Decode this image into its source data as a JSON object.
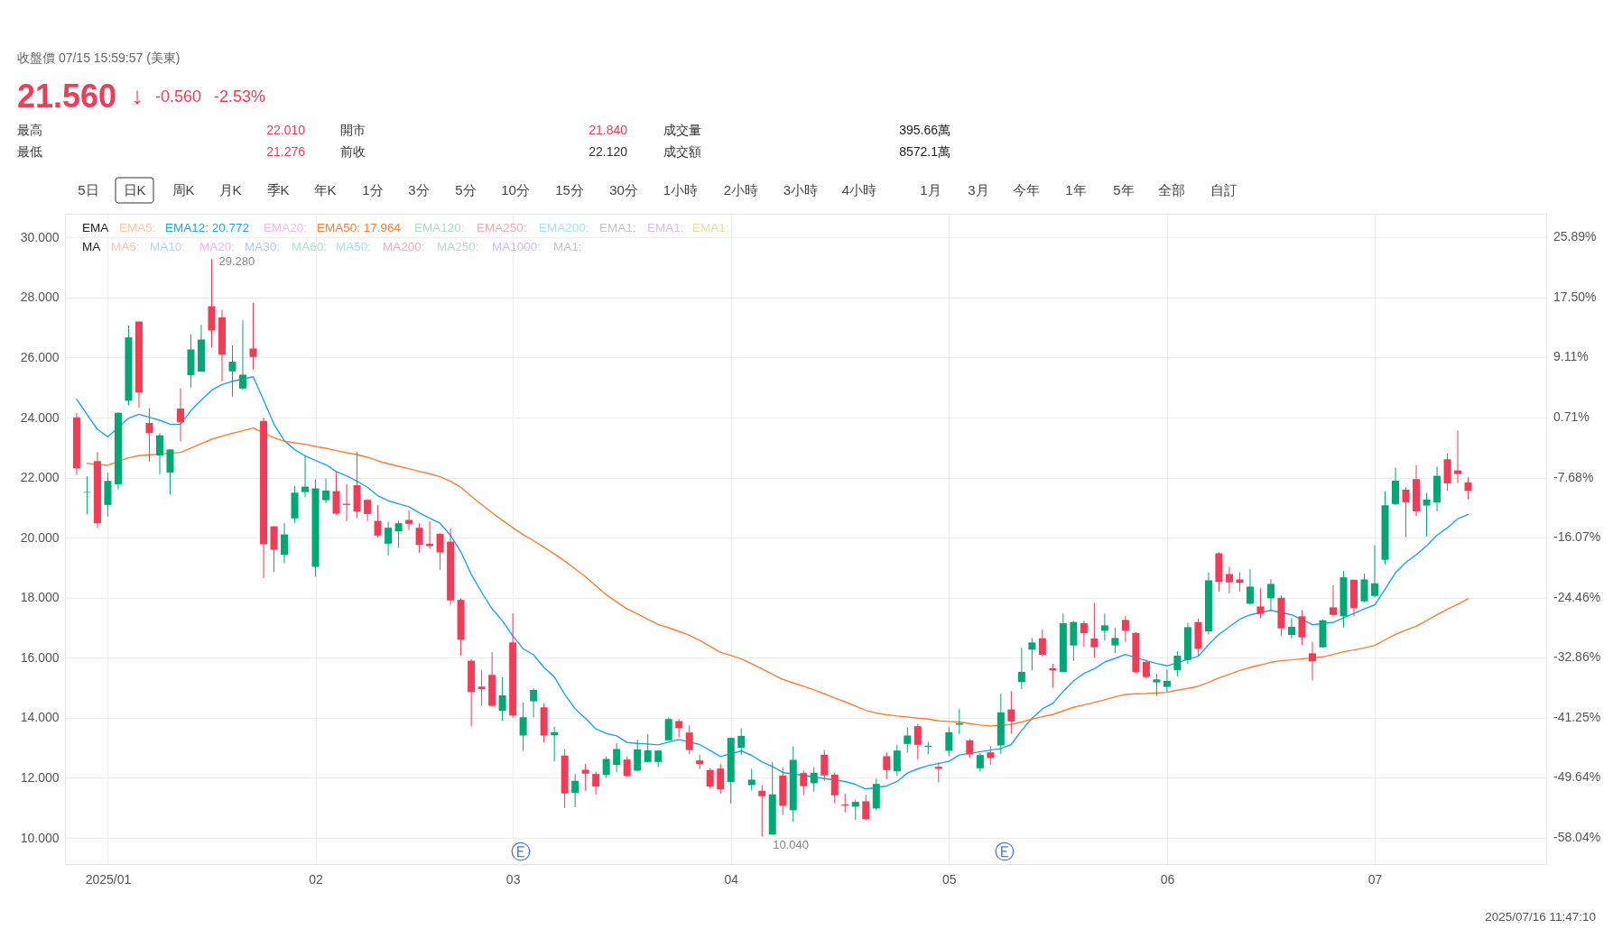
{
  "chart_data": {
    "type": "candlestick",
    "subtitle": "收盤價 07/15 15:59:57 (美東)",
    "categories": [
      null,
      null,
      null,
      "2025/01",
      null,
      null,
      null,
      null,
      null,
      null,
      null,
      null,
      null,
      null,
      null,
      null,
      null,
      null,
      null,
      null,
      null,
      null,
      null,
      "02",
      null,
      null,
      null,
      null,
      null,
      null,
      null,
      null,
      null,
      null,
      null,
      null,
      null,
      null,
      null,
      null,
      null,
      null,
      "03",
      null,
      null,
      null,
      null,
      null,
      null,
      null,
      null,
      null,
      null,
      null,
      null,
      null,
      null,
      null,
      null,
      null,
      null,
      null,
      null,
      "04",
      null,
      null,
      null,
      null,
      null,
      null,
      null,
      null,
      null,
      null,
      null,
      null,
      null,
      null,
      null,
      null,
      null,
      null,
      null,
      null,
      "05",
      null,
      null,
      null,
      null,
      null,
      null,
      null,
      null,
      null,
      null,
      null,
      null,
      null,
      null,
      null,
      null,
      null,
      null,
      null,
      null,
      "06",
      null,
      null,
      null,
      null,
      null,
      null,
      null,
      null,
      null,
      null,
      null,
      null,
      null,
      null,
      null,
      null,
      null,
      null,
      null,
      "07",
      null,
      null,
      null,
      null,
      null,
      null,
      null,
      null,
      null
    ],
    "ohlc": [
      [
        24.01,
        24.16,
        22.1,
        22.31
      ],
      [
        21.5,
        22.05,
        20.78,
        21.52
      ],
      [
        22.55,
        22.85,
        20.33,
        20.48
      ],
      [
        21.09,
        22.16,
        20.71,
        21.89
      ],
      [
        21.78,
        24.18,
        21.61,
        24.16
      ],
      [
        24.56,
        27.07,
        24.41,
        26.67
      ],
      [
        27.2,
        27.2,
        24.33,
        24.84
      ],
      [
        23.82,
        24.31,
        22.53,
        23.48
      ],
      [
        22.74,
        23.48,
        22.11,
        23.41
      ],
      [
        22.17,
        22.94,
        21.43,
        22.94
      ],
      [
        24.3,
        24.98,
        23.21,
        23.84
      ],
      [
        25.41,
        26.77,
        25.0,
        26.27
      ],
      [
        25.53,
        27.09,
        25.53,
        26.6
      ],
      [
        27.71,
        29.28,
        26.33,
        26.9
      ],
      [
        27.34,
        27.59,
        25.21,
        26.1
      ],
      [
        25.54,
        26.4,
        24.7,
        25.86
      ],
      [
        24.97,
        27.25,
        24.92,
        25.43
      ],
      [
        26.3,
        27.83,
        25.6,
        26.02
      ],
      [
        23.89,
        24.0,
        18.65,
        19.78
      ],
      [
        20.38,
        20.38,
        18.85,
        19.6
      ],
      [
        19.43,
        20.48,
        19.15,
        20.11
      ],
      [
        20.64,
        21.72,
        20.5,
        21.5
      ],
      [
        21.52,
        22.73,
        21.35,
        21.7
      ],
      [
        19.03,
        21.94,
        18.7,
        21.64
      ],
      [
        21.25,
        21.97,
        21.15,
        21.57
      ],
      [
        21.55,
        22.2,
        20.77,
        20.8
      ],
      [
        21.13,
        21.78,
        20.55,
        21.09
      ],
      [
        21.75,
        22.85,
        20.65,
        20.87
      ],
      [
        21.26,
        21.28,
        20.55,
        20.79
      ],
      [
        20.56,
        21.08,
        20.0,
        20.07
      ],
      [
        19.8,
        20.53,
        19.41,
        20.33
      ],
      [
        20.21,
        20.57,
        19.66,
        20.48
      ],
      [
        20.59,
        20.9,
        20.25,
        20.46
      ],
      [
        20.33,
        20.48,
        19.5,
        19.76
      ],
      [
        19.8,
        20.55,
        19.63,
        19.72
      ],
      [
        20.13,
        20.15,
        18.92,
        19.51
      ],
      [
        19.87,
        20.31,
        17.76,
        17.91
      ],
      [
        17.93,
        17.98,
        16.06,
        16.6
      ],
      [
        15.9,
        15.95,
        13.71,
        14.86
      ],
      [
        15.04,
        15.58,
        14.4,
        14.95
      ],
      [
        15.43,
        16.19,
        14.38,
        14.4
      ],
      [
        14.23,
        15.35,
        13.9,
        14.75
      ],
      [
        16.51,
        17.48,
        14.0,
        14.08
      ],
      [
        13.41,
        14.51,
        12.9,
        14.02
      ],
      [
        14.55,
        14.98,
        14.01,
        14.93
      ],
      [
        14.35,
        14.48,
        13.18,
        13.41
      ],
      [
        13.42,
        13.7,
        12.55,
        13.52
      ],
      [
        12.74,
        12.95,
        10.99,
        11.48
      ],
      [
        11.5,
        12.13,
        11.02,
        11.9
      ],
      [
        12.27,
        12.47,
        11.57,
        12.14
      ],
      [
        12.13,
        12.21,
        11.44,
        11.71
      ],
      [
        12.1,
        12.71,
        12.0,
        12.63
      ],
      [
        12.43,
        13.16,
        12.18,
        12.96
      ],
      [
        12.61,
        12.7,
        12.04,
        12.06
      ],
      [
        12.24,
        13.27,
        12.22,
        12.95
      ],
      [
        12.53,
        13.46,
        12.51,
        12.92
      ],
      [
        12.53,
        12.91,
        12.35,
        12.91
      ],
      [
        13.25,
        14.01,
        13.25,
        13.96
      ],
      [
        13.89,
        13.96,
        13.36,
        13.66
      ],
      [
        13.51,
        13.75,
        12.78,
        12.93
      ],
      [
        12.58,
        12.77,
        12.3,
        12.46
      ],
      [
        12.26,
        12.33,
        11.64,
        11.71
      ],
      [
        12.31,
        12.46,
        11.47,
        11.62
      ],
      [
        11.86,
        13.35,
        11.14,
        13.33
      ],
      [
        13.0,
        13.65,
        12.76,
        13.4
      ],
      [
        11.76,
        12.3,
        11.58,
        11.94
      ],
      [
        11.57,
        11.75,
        10.04,
        11.39
      ],
      [
        10.11,
        12.53,
        10.11,
        11.45
      ],
      [
        12.08,
        12.35,
        10.76,
        11.07
      ],
      [
        10.92,
        13.05,
        10.54,
        12.6
      ],
      [
        12.16,
        12.24,
        11.42,
        11.72
      ],
      [
        11.82,
        12.36,
        11.54,
        12.17
      ],
      [
        12.77,
        12.93,
        11.91,
        12.08
      ],
      [
        12.11,
        12.17,
        11.15,
        11.42
      ],
      [
        11.11,
        11.47,
        10.85,
        11.08
      ],
      [
        11.04,
        11.26,
        10.6,
        11.2
      ],
      [
        11.22,
        11.44,
        10.6,
        10.62
      ],
      [
        10.98,
        11.97,
        10.92,
        11.8
      ],
      [
        12.72,
        12.85,
        11.96,
        12.26
      ],
      [
        12.22,
        13.1,
        12.06,
        12.91
      ],
      [
        13.13,
        13.68,
        12.84,
        13.41
      ],
      [
        13.72,
        13.8,
        12.6,
        13.1
      ],
      [
        13.03,
        13.2,
        12.78,
        13.07
      ],
      [
        12.37,
        12.51,
        11.85,
        12.3
      ],
      [
        12.9,
        13.71,
        12.72,
        13.52
      ],
      [
        13.77,
        14.29,
        13.46,
        13.82
      ],
      [
        13.25,
        13.3,
        12.66,
        12.78
      ],
      [
        12.32,
        12.83,
        12.21,
        12.76
      ],
      [
        12.85,
        13.06,
        12.43,
        12.66
      ],
      [
        13.08,
        14.8,
        12.8,
        14.18
      ],
      [
        14.28,
        14.89,
        13.47,
        13.88
      ],
      [
        15.19,
        16.33,
        14.96,
        15.53
      ],
      [
        16.27,
        16.66,
        15.58,
        16.51
      ],
      [
        16.65,
        16.94,
        16.04,
        16.1
      ],
      [
        15.65,
        15.8,
        15.0,
        15.58
      ],
      [
        15.53,
        17.47,
        15.53,
        17.15
      ],
      [
        16.41,
        17.23,
        15.9,
        17.19
      ],
      [
        17.15,
        17.23,
        16.37,
        16.82
      ],
      [
        16.64,
        17.83,
        16.0,
        16.35
      ],
      [
        16.9,
        17.47,
        16.57,
        17.08
      ],
      [
        16.41,
        17.0,
        16.16,
        16.66
      ],
      [
        17.26,
        17.39,
        16.53,
        16.9
      ],
      [
        16.83,
        16.85,
        15.48,
        15.52
      ],
      [
        15.86,
        15.94,
        15.3,
        15.36
      ],
      [
        15.18,
        15.46,
        14.73,
        15.28
      ],
      [
        15.03,
        15.61,
        14.86,
        15.23
      ],
      [
        15.59,
        16.22,
        15.38,
        16.07
      ],
      [
        15.93,
        17.16,
        15.8,
        17.02
      ],
      [
        17.19,
        17.31,
        16.04,
        16.3
      ],
      [
        16.88,
        18.85,
        16.78,
        18.58
      ],
      [
        19.48,
        19.51,
        18.2,
        18.53
      ],
      [
        18.79,
        19.03,
        18.14,
        18.51
      ],
      [
        18.61,
        18.85,
        18.2,
        18.5
      ],
      [
        17.8,
        18.95,
        17.77,
        18.37
      ],
      [
        17.71,
        18.31,
        17.32,
        17.46
      ],
      [
        17.98,
        18.62,
        17.59,
        18.46
      ],
      [
        18.0,
        18.08,
        16.74,
        16.98
      ],
      [
        16.76,
        17.32,
        16.65,
        17.03
      ],
      [
        17.38,
        17.58,
        16.43,
        16.68
      ],
      [
        16.15,
        16.53,
        15.25,
        15.88
      ],
      [
        16.35,
        17.28,
        16.33,
        17.25
      ],
      [
        17.68,
        18.42,
        17.38,
        17.43
      ],
      [
        17.38,
        18.89,
        17.01,
        18.68
      ],
      [
        18.6,
        18.6,
        17.38,
        17.65
      ],
      [
        17.88,
        18.8,
        17.85,
        18.61
      ],
      [
        18.06,
        19.75,
        18.01,
        18.48
      ],
      [
        19.26,
        21.55,
        19.11,
        21.08
      ],
      [
        21.12,
        22.33,
        21.08,
        21.9
      ],
      [
        21.6,
        21.68,
        20.02,
        21.18
      ],
      [
        21.95,
        22.42,
        20.72,
        20.88
      ],
      [
        21.07,
        21.49,
        20.04,
        21.27
      ],
      [
        21.17,
        22.37,
        20.88,
        22.06
      ],
      [
        22.61,
        22.81,
        21.56,
        21.81
      ],
      [
        22.24,
        23.57,
        21.82,
        22.12
      ],
      [
        21.84,
        22.01,
        21.276,
        21.56
      ]
    ],
    "colors": [
      "#f23b56",
      "#00a874",
      "#f23b56",
      "#00a874",
      "#00a874",
      "#00a874",
      "#f23b56",
      "#f23b56",
      "#00a874",
      "#00a874",
      "#f23b56",
      "#00a874",
      "#00a874",
      "#f23b56",
      "#f23b56",
      "#00a874",
      "#00a874",
      "#f23b56",
      "#f23b56",
      "#f23b56",
      "#00a874",
      "#00a874",
      "#00a874",
      "#00a874",
      "#00a874",
      "#f23b56",
      "#f23b56",
      "#f23b56",
      "#f23b56",
      "#f23b56",
      "#00a874",
      "#00a874",
      "#f23b56",
      "#f23b56",
      "#f23b56",
      "#f23b56",
      "#f23b56",
      "#f23b56",
      "#f23b56",
      "#f23b56",
      "#f23b56",
      "#00a874",
      "#f23b56",
      "#00a874",
      "#00a874",
      "#f23b56",
      "#00a874",
      "#f23b56",
      "#00a874",
      "#f23b56",
      "#f23b56",
      "#00a874",
      "#00a874",
      "#f23b56",
      "#00a874",
      "#00a874",
      "#00a874",
      "#00a874",
      "#f23b56",
      "#f23b56",
      "#f23b56",
      "#f23b56",
      "#f23b56",
      "#00a874",
      "#00a874",
      "#00a874",
      "#f23b56",
      "#00a874",
      "#f23b56",
      "#00a874",
      "#f23b56",
      "#00a874",
      "#f23b56",
      "#f23b56",
      "#f23b56",
      "#00a874",
      "#f23b56",
      "#00a874",
      "#f23b56",
      "#00a874",
      "#00a874",
      "#f23b56",
      "#00a874",
      "#f23b56",
      "#00a874",
      "#00a874",
      "#f23b56",
      "#00a874",
      "#f23b56",
      "#00a874",
      "#f23b56",
      "#00a874",
      "#00a874",
      "#f23b56",
      "#f23b56",
      "#00a874",
      "#00a874",
      "#f23b56",
      "#f23b56",
      "#00a874",
      "#00a874",
      "#f23b56",
      "#f23b56",
      "#f23b56",
      "#00a874",
      "#00a874",
      "#00a874",
      "#00a874",
      "#f23b56",
      "#00a874",
      "#f23b56",
      "#f23b56",
      "#f23b56",
      "#00a874",
      "#f23b56",
      "#00a874",
      "#f23b56",
      "#00a874",
      "#f23b56",
      "#f23b56",
      "#00a874",
      "#f23b56",
      "#00a874",
      "#f23b56",
      "#00a874",
      "#00a874",
      "#00a874",
      "#00a874",
      "#f23b56",
      "#f23b56",
      "#00a874",
      "#00a874",
      "#f23b56",
      "#f23b56",
      "#f23b56"
    ],
    "series": [
      {
        "type": "line",
        "name": "EMA12: 20.772",
        "color": "#1ba6e8",
        "values": [
          24.61,
          24.1,
          23.61,
          23.36,
          null,
          23.98,
          24.11,
          24.01,
          23.91,
          23.78,
          23.78,
          24.23,
          24.58,
          24.91,
          25.1,
          25.21,
          null,
          25.36,
          24.58,
          23.78,
          23.23,
          22.93,
          22.73,
          22.57,
          22.43,
          22.2,
          22.06,
          21.88,
          21.68,
          21.4,
          21.23,
          21.13,
          21.03,
          20.83,
          20.65,
          20.48,
          20.08,
          19.53,
          18.78,
          18.18,
          17.63,
          17.23,
          16.73,
          16.3,
          16.1,
          15.68,
          15.36,
          14.78,
          14.3,
          13.98,
          13.63,
          13.48,
          13.4,
          13.18,
          13.15,
          13.13,
          13.1,
          null,
          13.28,
          null,
          13.11,
          12.91,
          12.71,
          null,
          12.9,
          12.75,
          12.53,
          12.38,
          12.18,
          null,
          null,
          null,
          null,
          null,
          11.88,
          11.78,
          11.63,
          null,
          11.73,
          11.88,
          12.16,
          12.3,
          12.41,
          null,
          12.55,
          12.76,
          null,
          null,
          null,
          12.98,
          13.11,
          13.58,
          13.98,
          14.3,
          14.48,
          14.88,
          15.23,
          15.48,
          15.63,
          15.86,
          15.98,
          16.11,
          null,
          15.9,
          15.81,
          15.73,
          null,
          null,
          16.05,
          16.43,
          16.78,
          17.03,
          17.28,
          17.43,
          null,
          17.58,
          null,
          17.43,
          null,
          17.1,
          null,
          17.18,
          17.33,
          17.48,
          17.63,
          17.76,
          18.28,
          18.83,
          19.18,
          19.43,
          19.73,
          20.08,
          20.33,
          20.63,
          20.772
        ]
      },
      {
        "type": "line",
        "name": "EMA50: 17.964",
        "color": "#ff7d33",
        "values": [
          null,
          22.48,
          null,
          22.41,
          null,
          22.66,
          22.73,
          22.76,
          null,
          null,
          22.84,
          22.98,
          23.13,
          23.28,
          23.38,
          23.48,
          23.56,
          23.65,
          null,
          23.33,
          23.21,
          23.16,
          23.11,
          23.04,
          22.98,
          22.9,
          22.83,
          22.77,
          22.68,
          22.56,
          22.46,
          22.38,
          22.3,
          22.21,
          22.13,
          22.03,
          21.88,
          21.68,
          21.38,
          21.1,
          20.83,
          20.58,
          20.33,
          20.1,
          19.9,
          19.68,
          19.46,
          19.22,
          18.96,
          18.7,
          18.4,
          18.1,
          17.86,
          17.63,
          17.46,
          17.28,
          17.11,
          17.0,
          16.88,
          16.75,
          16.58,
          16.38,
          16.18,
          16.08,
          15.96,
          15.8,
          15.63,
          15.45,
          15.28,
          15.16,
          15.05,
          14.93,
          14.8,
          14.66,
          14.53,
          14.39,
          14.25,
          14.16,
          14.1,
          14.06,
          14.03,
          13.99,
          13.96,
          13.9,
          13.88,
          13.86,
          13.81,
          13.76,
          13.73,
          null,
          13.78,
          13.86,
          13.96,
          14.04,
          14.11,
          14.23,
          14.35,
          14.43,
          14.51,
          14.6,
          14.7,
          14.78,
          14.8,
          14.81,
          14.83,
          14.85,
          14.92,
          14.98,
          15.05,
          15.18,
          15.33,
          15.45,
          15.58,
          15.68,
          15.76,
          15.85,
          15.9,
          15.93,
          15.96,
          null,
          16.03,
          16.11,
          16.2,
          16.26,
          16.33,
          16.41,
          16.6,
          16.78,
          16.92,
          17.05,
          17.24,
          17.43,
          17.62,
          17.78,
          17.964
        ]
      }
    ],
    "ylim": [
      9.13,
      30.79
    ],
    "yticks": [
      {
        "value": 10,
        "label": "10.000"
      },
      {
        "value": 12,
        "label": "12.000"
      },
      {
        "value": 14,
        "label": "14.000"
      },
      {
        "value": 16,
        "label": "16.000"
      },
      {
        "value": 18,
        "label": "18.000"
      },
      {
        "value": 20,
        "label": "20.000"
      },
      {
        "value": 22,
        "label": "22.000"
      },
      {
        "value": 24,
        "label": "24.000"
      },
      {
        "value": 26,
        "label": "26.000"
      },
      {
        "value": 28,
        "label": "28.000"
      },
      {
        "value": 30,
        "label": "30.000"
      }
    ],
    "grid": true,
    "legend": "top left",
    "legend_title": "EMA",
    "annotations": [
      "21.560",
      "↓",
      "-0.560",
      "-2.53%",
      "最高",
      "22.010",
      "開市",
      "21.840",
      "成交量",
      "395.66萬",
      "最低",
      "21.276",
      "前收",
      "22.120",
      "成交額",
      "8572.1萬",
      "5日",
      "日K",
      "周K",
      "月K",
      "季K",
      "年K",
      "1分",
      "3分",
      "5分",
      "10分",
      "15分",
      "30分",
      "1小時",
      "2小時",
      "3小時",
      "4小時",
      "1月",
      "3月",
      "今年",
      "1年",
      "5年",
      "全部",
      "自訂",
      "EMA5:",
      "EMA20:",
      "EMA120:",
      "EMA250:",
      "EMA200:",
      "EMA1:",
      "EMA1:",
      "EMA1:",
      "MA",
      "MA5:",
      "MA10:",
      "MA20:",
      "MA30:",
      "MA60:",
      "MA50:",
      "MA200:",
      "MA250:",
      "MA1000:",
      "MA1:",
      "29.280",
      "10.040",
      "2025/07/16 11:47:10",
      "25.89%",
      "17.50%",
      "9.11%",
      "0.71%",
      "-7.68%",
      "-16.07%",
      "-24.46%",
      "-32.86%",
      "-41.25%",
      "-49.64%",
      "-58.04%",
      "Ⓔ",
      "Ⓔ"
    ]
  }
}
